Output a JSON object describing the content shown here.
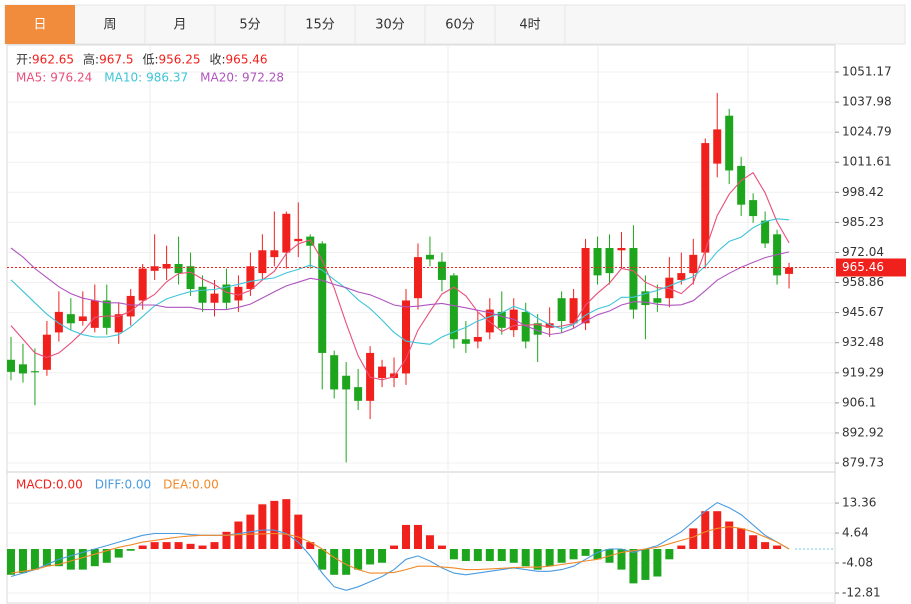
{
  "tabs": [
    "日",
    "周",
    "月",
    "5分",
    "15分",
    "30分",
    "60分",
    "4时"
  ],
  "active_tab": 0,
  "chart_data": [
    {
      "type": "candlestick",
      "ohlc_labels": [
        "开:",
        "高:",
        "低:",
        "收:"
      ],
      "up_color": "#f0201c",
      "down_color": "#1ea51e",
      "open": [
        925,
        923,
        920,
        920.6,
        937,
        945,
        942,
        939,
        951,
        937,
        944,
        951,
        964,
        965,
        967,
        966,
        957,
        950,
        958,
        951,
        956,
        963,
        970,
        972,
        977,
        979,
        976,
        927,
        918,
        913,
        907,
        917,
        917,
        919,
        952,
        971,
        968,
        962,
        934,
        933,
        937,
        946,
        938,
        946,
        941,
        939,
        952,
        941,
        941,
        974,
        974,
        973,
        974,
        955,
        952,
        952,
        960,
        963,
        972,
        1011,
        1032,
        1010,
        995,
        986,
        980,
        962.65
      ],
      "high": [
        935,
        932,
        930,
        942,
        955,
        952,
        955,
        958,
        958,
        950,
        956,
        967,
        980,
        975,
        979,
        972,
        962,
        960,
        965,
        962,
        972,
        980,
        990,
        990,
        994,
        980,
        977,
        929,
        924,
        921,
        931,
        925,
        926,
        956,
        976,
        979,
        972,
        963,
        942,
        946,
        952,
        955,
        952,
        950,
        945,
        948,
        955,
        956,
        978,
        979,
        980,
        981,
        984,
        962,
        958,
        970,
        972,
        978,
        1022,
        1042,
        1035,
        1014,
        998,
        990,
        982,
        967.5
      ],
      "low": [
        916,
        915,
        905,
        918,
        933,
        938,
        940,
        937,
        936,
        932,
        940,
        947,
        960,
        960,
        958,
        953,
        946,
        944,
        947,
        946,
        953,
        960,
        966,
        965,
        970,
        965,
        912,
        908,
        880,
        903,
        899,
        913,
        913,
        914,
        947,
        966,
        955,
        930,
        928,
        930,
        934,
        936,
        935,
        930,
        924,
        935,
        937,
        939,
        938,
        958,
        958,
        965,
        943,
        934,
        946,
        948,
        958,
        958,
        965,
        1005,
        1002,
        988,
        985,
        974,
        958,
        956.25
      ],
      "close": [
        919.7,
        919,
        919.5,
        936,
        946,
        941,
        944,
        951,
        939,
        945,
        953,
        965,
        966,
        967,
        963,
        956,
        950,
        954,
        950,
        957,
        966,
        973,
        973,
        989,
        978,
        975,
        928,
        912,
        912,
        907,
        928,
        922,
        919,
        951,
        970,
        969,
        960,
        934,
        932,
        935,
        947,
        939,
        947,
        933,
        936,
        941,
        942,
        952,
        974,
        962,
        963,
        974,
        947,
        949,
        950,
        961,
        963,
        971,
        1020,
        1026,
        1008,
        993,
        988,
        976,
        962,
        965.46
      ],
      "series": [
        {
          "name": "MA5:",
          "color": "#e8507a",
          "values": [
            940,
            934,
            928,
            926,
            928.0,
            932.3,
            937.3,
            943.6,
            944.2,
            944,
            946.4,
            950.6,
            953.6,
            959.2,
            962.8,
            963.4,
            960.4,
            958,
            954.6,
            953.4,
            955.4,
            960,
            963.8,
            971.6,
            975.8,
            977.6,
            968.6,
            956.4,
            941,
            926.8,
            917.4,
            916.2,
            917.6,
            925.4,
            938,
            946.2,
            953.8,
            956.8,
            953,
            946,
            941.6,
            937.4,
            940,
            940.2,
            940.4,
            939.2,
            939.8,
            940.8,
            949,
            954.2,
            958.6,
            965,
            964,
            959,
            956.6,
            956.2,
            954,
            958.8,
            973,
            988.2,
            997.6,
            1003.6,
            1007,
            998.2,
            985.4,
            976.24
          ]
        },
        {
          "name": "MA10:",
          "color": "#3ec5d8",
          "values": [
            960,
            955,
            950,
            945,
            941,
            938,
            936,
            935,
            935,
            936,
            939.4,
            944,
            948.6,
            951.7,
            953.4,
            954.9,
            955.5,
            955.8,
            956.9,
            958.1,
            959.4,
            960.2,
            960.9,
            963.1,
            964.6,
            966.5,
            964.3,
            960.1,
            956.3,
            951.3,
            947.5,
            942.4,
            937,
            933.2,
            932.4,
            931.8,
            935,
            937.2,
            939.2,
            942,
            943.9,
            945.6,
            948.4,
            946.6,
            943.2,
            940.4,
            938.6,
            940.4,
            944.6,
            947.3,
            948.9,
            952.4,
            952.4,
            954,
            955.4,
            957.4,
            959.5,
            961.4,
            966,
            972.4,
            976.9,
            978.8,
            982.9,
            985.6,
            986.8,
            986.37
          ]
        },
        {
          "name": "MA20:",
          "color": "#b055c0",
          "values": [
            974,
            970,
            965,
            961,
            957,
            954,
            952,
            951,
            950,
            950,
            949,
            949,
            949,
            948,
            948,
            948,
            947,
            947,
            947,
            948,
            949.4,
            952.1,
            954.8,
            957.4,
            959,
            960.7,
            959.9,
            958,
            956.6,
            954.7,
            953.5,
            951.3,
            949,
            948.2,
            948.5,
            949.2,
            949.7,
            948.7,
            947.8,
            946.7,
            945.7,
            944,
            942.7,
            939.9,
            937.8,
            936.1,
            936.8,
            938.8,
            941.9,
            944.7,
            946.4,
            949,
            950.4,
            950.3,
            949.3,
            948.9,
            949.1,
            950.9,
            955.3,
            959.9,
            962.9,
            965.6,
            967.7,
            969.8,
            971.1,
            972.28
          ]
        }
      ],
      "ylim": [
        875.8,
        1063.0
      ],
      "yticks": [
        1051.17,
        1037.98,
        1024.79,
        1011.61,
        998.42,
        985.23,
        972.04,
        958.86,
        945.67,
        932.48,
        919.29,
        906.1,
        892.92,
        879.73
      ],
      "grid": true,
      "last_price_color": "#f0201c"
    },
    {
      "type": "macd",
      "series": [
        {
          "name": "MACD:",
          "kind": "bar",
          "legend_color": "#f0201c",
          "up_color": "#f0201c",
          "down_color": "#1ea51e",
          "legend_label": "0.00",
          "values": [
            -7.5,
            -7,
            -6,
            -5,
            -5,
            -6,
            -6,
            -5,
            -4,
            -2.5,
            -0.5,
            1,
            2,
            2,
            2,
            1.5,
            1,
            2,
            5,
            8,
            10,
            13,
            14,
            14.5,
            10,
            2,
            -6,
            -7.5,
            -7.5,
            -6,
            -4.5,
            -4,
            1,
            7,
            7,
            4,
            1,
            -3,
            -3.5,
            -3.5,
            -3.5,
            -3.5,
            -4,
            -5,
            -6,
            -5,
            -4,
            -3,
            -2,
            -3,
            -4,
            -6,
            -10,
            -9,
            -8,
            -3,
            1,
            6,
            11,
            11,
            8,
            6,
            4,
            2,
            1,
            0
          ]
        },
        {
          "name": "DIFF:",
          "kind": "line",
          "color": "#4a9be0",
          "legend_label": "0.00",
          "values": [
            -8,
            -7,
            -6,
            -4.5,
            -3,
            -2,
            -1,
            0,
            1,
            2,
            3,
            4,
            4.5,
            4.5,
            4.5,
            4.2,
            4,
            4,
            4,
            4.5,
            5,
            5.5,
            5.5,
            4.5,
            2,
            -2,
            -7,
            -11,
            -12,
            -11,
            -9.5,
            -8,
            -6,
            -3,
            -2,
            -3.5,
            -5.5,
            -7,
            -7.5,
            -7,
            -6.5,
            -6,
            -5.5,
            -6,
            -6.5,
            -6.5,
            -6,
            -5,
            -3,
            -1,
            0,
            0,
            -1,
            0,
            1,
            3,
            5,
            8,
            11,
            13.5,
            12,
            10,
            7,
            4,
            2,
            0
          ]
        },
        {
          "name": "DEA:",
          "kind": "line",
          "color": "#f08a2a",
          "legend_label": "0.00",
          "values": [
            -7,
            -6.5,
            -6,
            -5,
            -4.5,
            -3.5,
            -2.5,
            -1.5,
            -0.5,
            0.5,
            1.2,
            2,
            2.5,
            3,
            3.5,
            3.8,
            4,
            4,
            4,
            4.2,
            4.3,
            4.4,
            4.5,
            4.3,
            3.5,
            2,
            0,
            -2.5,
            -4.5,
            -6,
            -7,
            -7,
            -6.8,
            -6,
            -5,
            -5,
            -5.2,
            -5.5,
            -6,
            -6,
            -5.8,
            -5.6,
            -5.4,
            -5.3,
            -5.3,
            -5,
            -4.5,
            -4,
            -3.5,
            -3,
            -2,
            -1,
            -0.5,
            0,
            0.5,
            1.5,
            2.5,
            3.5,
            5,
            6,
            6.5,
            6,
            5,
            3.5,
            2,
            0
          ]
        }
      ],
      "ylim": [
        -16.0,
        22.4
      ],
      "yticks": [
        13.36,
        4.64,
        -4.08,
        -12.81
      ],
      "grid": true,
      "zero_line_color": "#6fc8e0"
    }
  ]
}
